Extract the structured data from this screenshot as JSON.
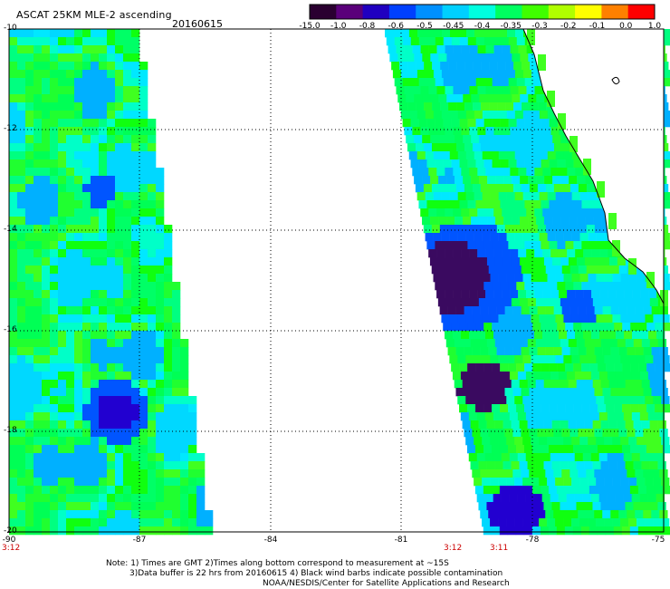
{
  "header": {
    "title": "ASCAT 25KM MLE-2 ascending",
    "date": "20160615"
  },
  "colorbar": {
    "labels": [
      "-15.0",
      "-1.0",
      "-0.8",
      "-0.6",
      "-0.5",
      "-0.45",
      "-0.4",
      "-0.35",
      "-0.3",
      "-0.2",
      "-0.1",
      "0.0",
      "1.0"
    ],
    "colors": [
      "#2a0030",
      "#5a007a",
      "#2000c0",
      "#0040ff",
      "#0090ff",
      "#00d0ff",
      "#00ffe0",
      "#00ff60",
      "#40ff00",
      "#b0ff00",
      "#ffff00",
      "#ff8000",
      "#ff0000"
    ]
  },
  "map": {
    "lat_labels": [
      "-10",
      "-12",
      "-14",
      "-16",
      "-18",
      "-20"
    ],
    "lon_labels": [
      "-90",
      "-87",
      "-84",
      "-81",
      "-78",
      "-75"
    ],
    "lat_range": [
      -20,
      -10
    ],
    "lon_range": [
      -90,
      -75
    ],
    "grid": true
  },
  "swath_times": [
    "3:12",
    "3:12",
    "3:11"
  ],
  "notes": {
    "line1": "Note: 1) Times are GMT 2)Times along bottom correspond to measurement at ~15S",
    "line2": "3)Data buffer is 22 hrs from 20160615 4) Black wind barbs indicate possible contamination",
    "line3": "NOAA/NESDIS/Center for Satellite Applications and Research"
  }
}
